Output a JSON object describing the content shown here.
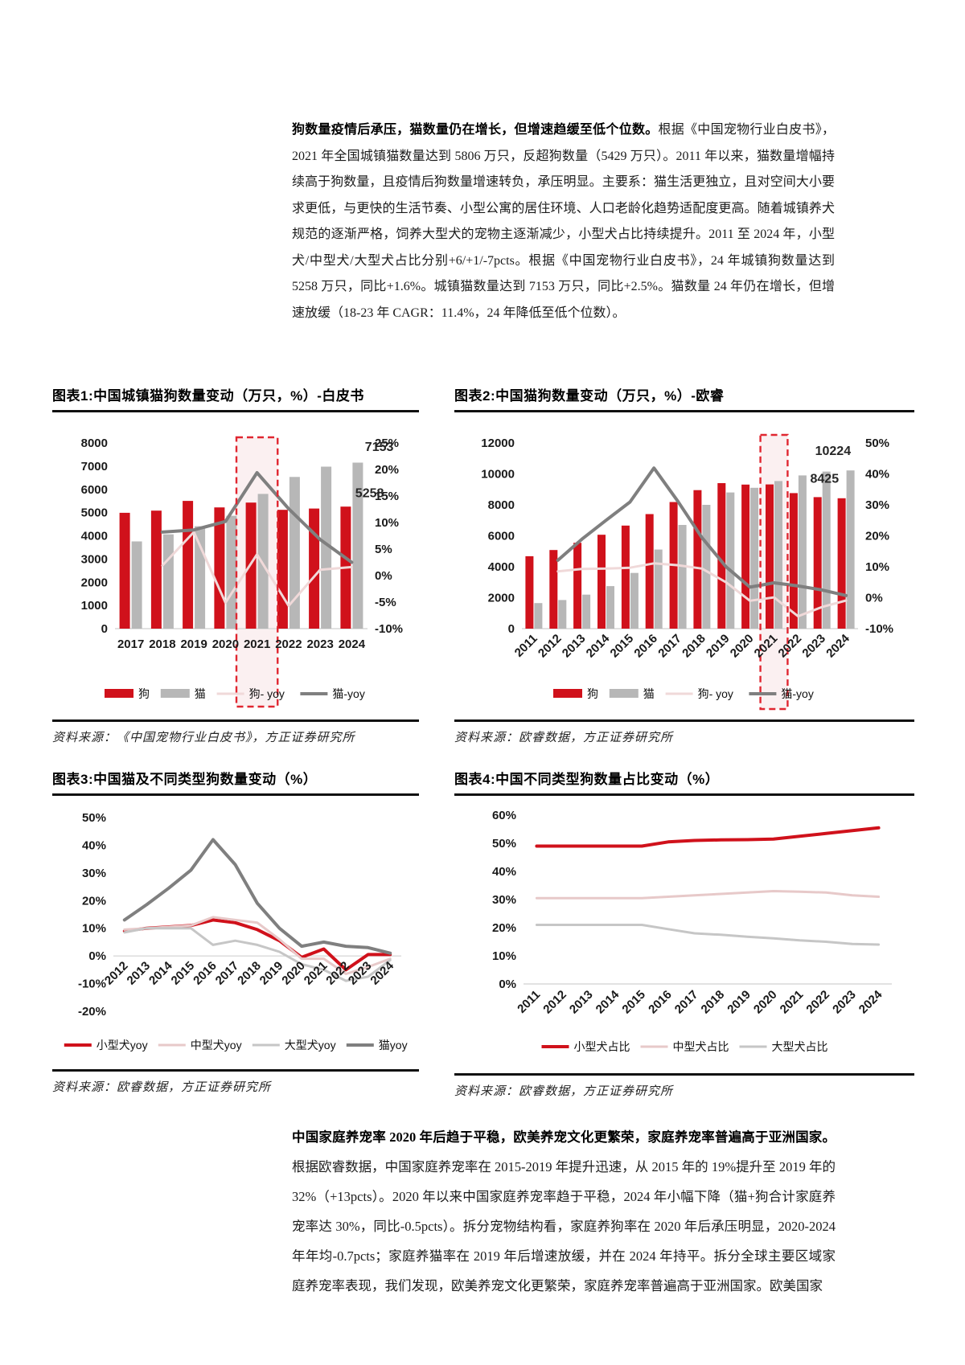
{
  "paragraphs": {
    "top_bold": "狗数量疫情后承压，猫数量仍在增长，但增速趋缓至低个位数。",
    "top_text": "根据《中国宠物行业白皮书》，2021 年全国城镇猫数量达到 5806 万只，反超狗数量（5429 万只）。2011 年以来，猫数量增幅持续高于狗数量，且疫情后狗数量增速转负，承压明显。主要系：猫生活更独立，且对空间大小要求更低，与更快的生活节奏、小型公寓的居住环境、人口老龄化趋势适配度更高。随着城镇养犬规范的逐渐严格，饲养大型犬的宠物主逐渐减少，小型犬占比持续提升。2011 至 2024 年，小型犬/中型犬/大型犬占比分别+6/+1/-7pcts。根据《中国宠物行业白皮书》，24 年城镇狗数量达到 5258 万只，同比+1.6%。城镇猫数量达到 7153 万只，同比+2.5%。猫数量 24 年仍在增长，但增速放缓（18-23 年 CAGR：11.4%，24 年降低至低个位数）。",
    "bottom_bold": "中国家庭养宠率 2020 年后趋于平稳，欧美养宠文化更繁荣，家庭养宠率普遍高于亚洲国家。",
    "bottom_text": "根据欧睿数据，中国家庭养宠率在 2015-2019 年提升迅速，从 2015 年的 19%提升至 2019 年的 32%（+13pcts）。2020 年以来中国家庭养宠率趋于平稳，2024 年小幅下降（猫+狗合计家庭养宠率达 30%，同比-0.5pcts）。拆分宠物结构看，家庭养狗率在 2020 年后承压明显，2020-2024 年年均-0.7pcts；家庭养猫率在 2019 年后增速放缓，并在 2024 年持平。拆分全球主要区域家庭养宠率表现，我们发现，欧美养宠文化更繁荣，家庭养宠率普遍高于亚洲国家。欧美国家"
  },
  "figures": [
    {
      "title": "图表1:中国城镇猫狗数量变动（万只，%）-白皮书",
      "source": "资料来源：《中国宠物行业白皮书》，方正证券研究所"
    },
    {
      "title": "图表2:中国猫狗数量变动（万只，%）-欧睿",
      "source": "资料来源：欧睿数据，方正证券研究所"
    },
    {
      "title": "图表3:中国猫及不同类型狗数量变动（%）",
      "source": "资料来源：欧睿数据，方正证券研究所"
    },
    {
      "title": "图表4:中国不同类型狗数量占比变动（%）",
      "source": "资料来源：欧睿数据，方正证券研究所"
    }
  ],
  "colors": {
    "red": "#d0111b",
    "gray_bar": "#b7b7b7",
    "dark_gray_line": "#7f7f7f",
    "pink_line": "#f0d9d9",
    "light_gray_line": "#c6c6c6",
    "highlight_stroke": "#e02630",
    "highlight_fill": "#fbf0f1"
  },
  "chart_data": [
    {
      "type": "bar",
      "title": "图表1:中国城镇猫狗数量变动（万只，%）-白皮书",
      "categories": [
        "2017",
        "2018",
        "2019",
        "2020",
        "2021",
        "2022",
        "2023",
        "2024"
      ],
      "bar_series": [
        {
          "name": "狗",
          "color": "#d0111b",
          "values": [
            4990,
            5085,
            5503,
            5222,
            5429,
            5119,
            5175,
            5258
          ]
        },
        {
          "name": "猫",
          "color": "#b7b7b7",
          "values": [
            3756,
            4064,
            4412,
            4862,
            5806,
            6536,
            6980,
            7153
          ]
        }
      ],
      "line_series": [
        {
          "name": "狗- yoy",
          "color": "#f0d9d9",
          "width": 3,
          "axis": "right",
          "values": [
            null,
            1.9,
            8.2,
            -5.1,
            4.0,
            -5.7,
            1.1,
            1.6
          ]
        },
        {
          "name": "猫-yoy",
          "color": "#7f7f7f",
          "width": 4,
          "axis": "right",
          "values": [
            null,
            8.2,
            8.6,
            10.2,
            19.4,
            12.6,
            6.8,
            2.5
          ]
        }
      ],
      "left_axis": {
        "min": 0,
        "max": 8000,
        "step": 1000
      },
      "right_axis": {
        "min": -10,
        "max": 25,
        "step": 5,
        "format": "percent"
      },
      "highlight_category": "2021",
      "annotations": [
        {
          "text": "7153"
        },
        {
          "text": "5258"
        }
      ],
      "legend_position": "bottom"
    },
    {
      "type": "bar",
      "title": "图表2:中国猫狗数量变动（万只，%）-欧睿",
      "categories": [
        "2011",
        "2012",
        "2013",
        "2014",
        "2015",
        "2016",
        "2017",
        "2018",
        "2019",
        "2020",
        "2021",
        "2022",
        "2023",
        "2024"
      ],
      "bar_series": [
        {
          "name": "狗",
          "color": "#d0111b",
          "values": [
            4680,
            5080,
            5550,
            6070,
            6660,
            7400,
            8180,
            8950,
            9400,
            9310,
            9320,
            8760,
            8500,
            8425
          ]
        },
        {
          "name": "猫",
          "color": "#b7b7b7",
          "values": [
            1650,
            1850,
            2200,
            2750,
            3600,
            5110,
            6700,
            8000,
            8800,
            9100,
            9540,
            9900,
            10150,
            10224
          ]
        }
      ],
      "line_series": [
        {
          "name": "狗- yoy",
          "color": "#f0d9d9",
          "width": 3,
          "axis": "right",
          "values": [
            null,
            8.5,
            9.3,
            9.4,
            9.7,
            11.1,
            10.5,
            9.4,
            5.0,
            -1.0,
            0.1,
            -6.0,
            -3.0,
            -0.9
          ]
        },
        {
          "name": "猫-yoy",
          "color": "#7f7f7f",
          "width": 4,
          "axis": "right",
          "values": [
            null,
            12.1,
            18.9,
            25.0,
            30.9,
            41.9,
            31.1,
            19.4,
            10.0,
            3.4,
            4.8,
            3.8,
            2.5,
            0.7
          ]
        }
      ],
      "left_axis": {
        "min": 0,
        "max": 12000,
        "step": 2000
      },
      "right_axis": {
        "min": -10,
        "max": 50,
        "step": 10,
        "format": "percent"
      },
      "highlight_category": "2021",
      "annotations": [
        {
          "text": "10224"
        },
        {
          "text": "8425"
        }
      ],
      "legend_position": "bottom"
    },
    {
      "type": "line",
      "title": "图表3:中国猫及不同类型狗数量变动（%）",
      "categories": [
        "2012",
        "2013",
        "2014",
        "2015",
        "2016",
        "2017",
        "2018",
        "2019",
        "2020",
        "2021",
        "2022",
        "2023",
        "2024"
      ],
      "line_series": [
        {
          "name": "小型犬yoy",
          "color": "#d0111b",
          "width": 4,
          "axis": "left",
          "values": [
            9,
            10,
            10.5,
            11,
            13,
            12,
            9.5,
            5.5,
            -0.5,
            2.5,
            -5,
            0.5,
            0.5
          ]
        },
        {
          "name": "中型犬yoy",
          "color": "#e7c9c9",
          "width": 3,
          "axis": "left",
          "values": [
            9.5,
            10,
            10.5,
            11,
            14,
            13,
            12,
            6,
            -1,
            -1,
            -6.5,
            -4,
            -1
          ]
        },
        {
          "name": "大型犬yoy",
          "color": "#c6c6c6",
          "width": 3,
          "axis": "left",
          "values": [
            8.5,
            10,
            10,
            10,
            4,
            5.5,
            4,
            1.5,
            -3,
            -5,
            -9,
            -7.5,
            -1.5
          ]
        },
        {
          "name": "猫yoy",
          "color": "#7f7f7f",
          "width": 4,
          "axis": "left",
          "values": [
            13,
            18.5,
            24.5,
            31,
            42,
            33,
            19,
            10,
            3.5,
            5,
            3.5,
            3,
            1
          ]
        }
      ],
      "left_axis": {
        "min": -20,
        "max": 50,
        "step": 10,
        "format": "percent"
      },
      "legend_position": "bottom"
    },
    {
      "type": "line",
      "title": "图表4:中国不同类型狗数量占比变动（%）",
      "categories": [
        "2011",
        "2012",
        "2013",
        "2014",
        "2015",
        "2016",
        "2017",
        "2018",
        "2019",
        "2020",
        "2021",
        "2022",
        "2023",
        "2024"
      ],
      "line_series": [
        {
          "name": "小型犬占比",
          "color": "#d0111b",
          "width": 4,
          "axis": "left",
          "values": [
            49,
            49,
            49,
            49,
            49,
            50.5,
            51,
            51.2,
            51.3,
            51.5,
            52.5,
            53.5,
            54.5,
            55.5
          ]
        },
        {
          "name": "中型犬占比",
          "color": "#e7c9c9",
          "width": 3,
          "axis": "left",
          "values": [
            30.5,
            30.5,
            30.5,
            30.5,
            30.5,
            31,
            31.5,
            32,
            32.5,
            33,
            32.8,
            32.5,
            31.5,
            31
          ]
        },
        {
          "name": "大型犬占比",
          "color": "#c6c6c6",
          "width": 3,
          "axis": "left",
          "values": [
            21,
            21,
            21,
            21,
            21,
            19.5,
            18,
            17.5,
            16.8,
            16.2,
            15.5,
            15,
            14.2,
            14
          ]
        }
      ],
      "left_axis": {
        "min": 0,
        "max": 60,
        "step": 10,
        "format": "percent"
      },
      "legend_position": "bottom"
    }
  ]
}
